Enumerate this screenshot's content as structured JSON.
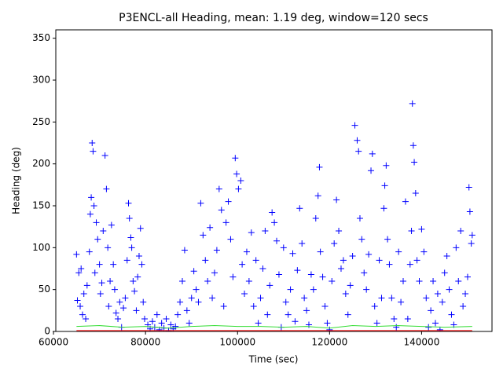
{
  "chart_data": {
    "type": "scatter",
    "title": "P3ENCL-all Heading, mean: 1.19 deg, window=120 secs",
    "x_label": "Time (sec)",
    "y_label": "Heading (deg)",
    "xlim": [
      60500,
      155300
    ],
    "ylim": [
      0,
      360
    ],
    "xticks": [
      60000,
      80000,
      100000,
      120000,
      140000
    ],
    "yticks": [
      0,
      50,
      100,
      150,
      200,
      250,
      300,
      350
    ],
    "series": [
      {
        "color": "#0000ff",
        "marker": "+",
        "x": [
          65000,
          65200,
          65500,
          65800,
          66000,
          66300,
          66600,
          67000,
          67300,
          67800,
          68000,
          68200,
          68400,
          68600,
          68800,
          69000,
          69300,
          69600,
          70000,
          70200,
          70500,
          70800,
          71200,
          71500,
          71800,
          72000,
          72300,
          72600,
          73000,
          73300,
          73600,
          74000,
          74400,
          74800,
          75200,
          75600,
          76000,
          76300,
          76500,
          76800,
          77000,
          77300,
          77600,
          78000,
          78300,
          78600,
          78900,
          79200,
          79500,
          79800,
          80500,
          81000,
          81500,
          82000,
          82500,
          83000,
          83500,
          84000,
          84500,
          85000,
          85500,
          86000,
          86500,
          87000,
          87500,
          88000,
          88500,
          89000,
          89500,
          90000,
          90500,
          91000,
          91500,
          92000,
          92500,
          93000,
          93500,
          94000,
          94500,
          95000,
          95500,
          96000,
          96500,
          97000,
          97500,
          98000,
          98500,
          99000,
          99500,
          99800,
          100200,
          100700,
          101000,
          101500,
          102000,
          102500,
          103000,
          103500,
          104000,
          104500,
          105000,
          105500,
          106000,
          106500,
          107000,
          107500,
          108000,
          108500,
          109000,
          109500,
          110000,
          110500,
          111000,
          111500,
          112000,
          112500,
          113000,
          113500,
          114000,
          114500,
          115000,
          115500,
          116000,
          116500,
          117000,
          117500,
          117800,
          118000,
          118500,
          119000,
          119500,
          120000,
          120500,
          121000,
          121500,
          122000,
          122500,
          123000,
          123500,
          124000,
          124500,
          125000,
          125500,
          126000,
          126300,
          126600,
          127000,
          127500,
          128000,
          128500,
          129000,
          129300,
          129800,
          130300,
          130800,
          131300,
          131800,
          132000,
          132300,
          132600,
          133000,
          133500,
          134000,
          134500,
          135000,
          135500,
          136000,
          136500,
          137000,
          137500,
          137800,
          138000,
          138200,
          138400,
          138700,
          139000,
          139500,
          140000,
          140500,
          141000,
          141500,
          142000,
          142500,
          143000,
          143500,
          144000,
          144500,
          145000,
          145500,
          146000,
          146500,
          147000,
          147500,
          148000,
          148500,
          149000,
          149500,
          150000,
          150300,
          150500,
          150800,
          151000
        ],
        "values": [
          92,
          37,
          70,
          30,
          75,
          20,
          45,
          15,
          55,
          95,
          140,
          160,
          225,
          215,
          150,
          70,
          130,
          110,
          80,
          45,
          58,
          120,
          210,
          170,
          100,
          30,
          60,
          127,
          80,
          50,
          22,
          15,
          35,
          5,
          28,
          40,
          85,
          153,
          135,
          112,
          100,
          60,
          48,
          25,
          65,
          90,
          123,
          80,
          35,
          15,
          8,
          3,
          12,
          5,
          20,
          2,
          10,
          4,
          15,
          1,
          8,
          3,
          6,
          20,
          35,
          60,
          97,
          25,
          10,
          40,
          72,
          50,
          35,
          153,
          115,
          85,
          60,
          124,
          40,
          70,
          97,
          170,
          145,
          30,
          130,
          155,
          110,
          65,
          207,
          188,
          170,
          180,
          80,
          45,
          95,
          60,
          118,
          30,
          85,
          10,
          40,
          75,
          120,
          20,
          55,
          142,
          130,
          108,
          68,
          5,
          100,
          35,
          20,
          50,
          93,
          12,
          73,
          147,
          105,
          40,
          25,
          8,
          68,
          50,
          135,
          162,
          196,
          95,
          65,
          30,
          10,
          2,
          60,
          105,
          157,
          120,
          75,
          85,
          45,
          20,
          55,
          90,
          246,
          228,
          215,
          135,
          110,
          70,
          50,
          92,
          192,
          212,
          30,
          10,
          85,
          40,
          147,
          174,
          198,
          110,
          80,
          40,
          15,
          5,
          95,
          35,
          60,
          155,
          15,
          80,
          120,
          272,
          222,
          202,
          165,
          85,
          60,
          122,
          95,
          40,
          5,
          25,
          60,
          10,
          45,
          2,
          35,
          70,
          90,
          50,
          20,
          8,
          100,
          60,
          120,
          30,
          45,
          65,
          172,
          143,
          105,
          115
        ]
      },
      {
        "color": "#33dd33",
        "marker": "line",
        "x": [
          65000,
          70000,
          75000,
          80000,
          85000,
          90000,
          95000,
          100000,
          105000,
          110000,
          115000,
          120000,
          125000,
          130000,
          135000,
          140000,
          145000,
          151000
        ],
        "values": [
          6,
          7,
          5,
          6,
          4,
          6,
          7,
          6,
          6,
          5,
          6,
          4,
          7,
          6,
          7,
          6,
          5,
          6
        ]
      },
      {
        "color": "#ff0000",
        "marker": "line",
        "x": [
          65000,
          151000
        ],
        "values": [
          1,
          1
        ]
      }
    ]
  }
}
